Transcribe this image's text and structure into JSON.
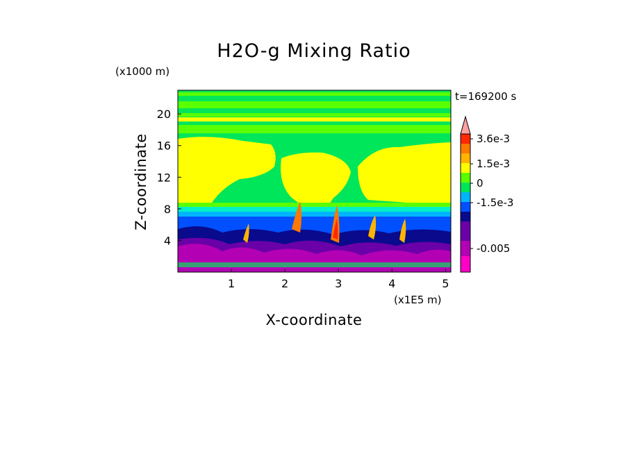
{
  "title": "H2O-g Mixing Ratio",
  "time_stamp": "t=169200 s",
  "chart_data": {
    "type": "heatmap",
    "title": "H2O-g Mixing Ratio",
    "xlabel": "X-coordinate",
    "ylabel": "Z-coordinate",
    "x_unit": "(x1E5 m)",
    "y_unit": "(x1000 m)",
    "xlim": [
      0,
      5.1
    ],
    "ylim": [
      0,
      23
    ],
    "x_ticks": [
      "1",
      "2",
      "3",
      "4",
      "5"
    ],
    "y_ticks": [
      "4",
      "8",
      "12",
      "16",
      "20"
    ],
    "colorbar": {
      "tick_labels": [
        "3.6e-3",
        "1.5e-3",
        "0",
        "-1.5e-3",
        "-0.005"
      ],
      "colors": [
        "#ff00c8",
        "#b400b4",
        "#6a00a8",
        "#0a0a8c",
        "#0050ff",
        "#00b4ff",
        "#00f0c8",
        "#00e65a",
        "#5aff00",
        "#ffff00",
        "#ffb400",
        "#ff7800",
        "#ff2800",
        "#ffa0a0"
      ],
      "extend": "max"
    },
    "fields": {
      "upper_layer_color": "green",
      "mid_layer_color": "yellow",
      "lower_layer_colors": [
        "blue",
        "navy",
        "purple",
        "magenta"
      ],
      "plumes_color": "orange"
    }
  }
}
